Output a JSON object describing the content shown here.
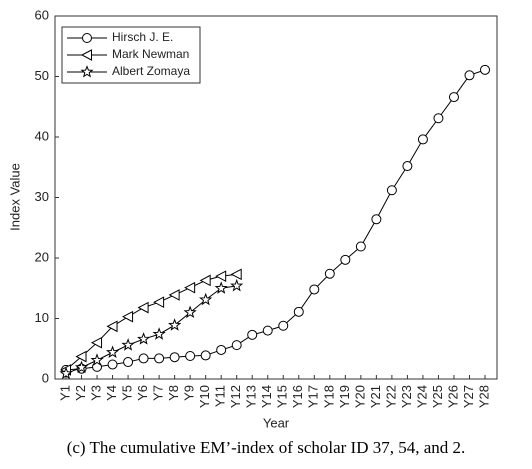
{
  "chart_data": {
    "type": "line",
    "caption": "(c) The cumulative EM’-index of scholar ID 37, 54, and 2.",
    "x_label": "Year",
    "y_label": "Index Value",
    "categories": [
      "Y1",
      "Y2",
      "Y3",
      "Y4",
      "Y5",
      "Y6",
      "Y7",
      "Y8",
      "Y9",
      "Y10",
      "Y11",
      "Y12",
      "Y13",
      "Y14",
      "Y15",
      "Y16",
      "Y17",
      "Y18",
      "Y19",
      "Y20",
      "Y21",
      "Y22",
      "Y23",
      "Y24",
      "Y25",
      "Y26",
      "Y27",
      "Y28"
    ],
    "ylim": [
      0,
      60
    ],
    "yticks": [
      0,
      10,
      20,
      30,
      40,
      50,
      60
    ],
    "legend": "upper left",
    "series": [
      {
        "name": "Hirsch J. E.",
        "color": "#000000",
        "marker": "circle",
        "values": [
          1.5,
          1.7,
          2.0,
          2.4,
          2.8,
          3.4,
          3.4,
          3.6,
          3.8,
          3.9,
          4.8,
          5.6,
          7.3,
          8.0,
          8.8,
          11.1,
          14.8,
          17.4,
          19.7,
          21.9,
          26.4,
          31.2,
          35.2,
          39.6,
          43.1,
          46.6,
          50.2,
          51.1
        ]
      },
      {
        "name": "Mark Newman",
        "color": "#000000",
        "marker": "triangle-left",
        "values": [
          1.5,
          3.7,
          6.0,
          8.7,
          10.3,
          11.8,
          12.7,
          13.9,
          15.1,
          16.3,
          17.0,
          17.3,
          null,
          null,
          null,
          null,
          null,
          null,
          null,
          null,
          null,
          null,
          null,
          null,
          null,
          null,
          null,
          null
        ]
      },
      {
        "name": "Albert Zomaya",
        "color": "#000000",
        "marker": "star",
        "values": [
          0.9,
          1.9,
          3.1,
          4.4,
          5.6,
          6.6,
          7.4,
          8.9,
          11.0,
          13.1,
          15.0,
          15.4,
          null,
          null,
          null,
          null,
          null,
          null,
          null,
          null,
          null,
          null,
          null,
          null,
          null,
          null,
          null,
          null
        ]
      }
    ]
  }
}
